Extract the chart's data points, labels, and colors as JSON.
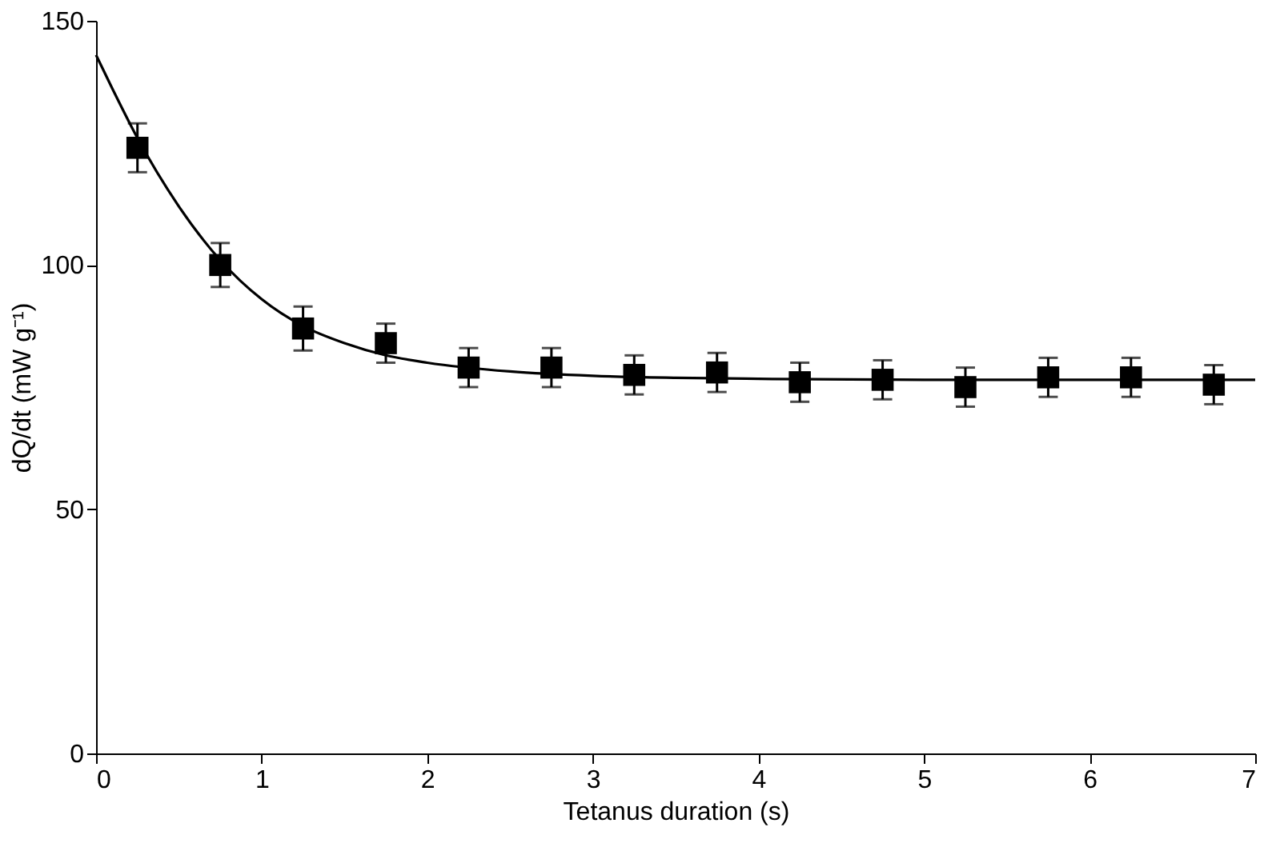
{
  "chart_data": {
    "type": "scatter",
    "xlabel": "Tetanus duration (s)",
    "ylabel": "dQ/dt (mW g⁻¹)",
    "xlim": [
      0,
      7
    ],
    "xticks": [
      0,
      1,
      2,
      3,
      4,
      5,
      6,
      7
    ],
    "ylim": [
      0,
      150
    ],
    "yticks": [
      0,
      50,
      100,
      150
    ],
    "grid": false,
    "marker": "square",
    "series": [
      {
        "color": "#000000",
        "x": [
          0.25,
          0.75,
          1.25,
          1.75,
          2.25,
          2.75,
          3.25,
          3.75,
          4.25,
          4.75,
          5.25,
          5.75,
          6.25,
          6.75
        ],
        "values": [
          124,
          100,
          87,
          84,
          79,
          79,
          77.5,
          78,
          76,
          76.5,
          75,
          77,
          77,
          75.5
        ],
        "errors": [
          5,
          4.5,
          4.5,
          4,
          4,
          4,
          4,
          4,
          4,
          4,
          4,
          4,
          4,
          4
        ]
      },
      {
        "type": "line",
        "color": "#000000",
        "line_style": "solid",
        "marker": "none",
        "x": [
          0,
          0.1,
          0.25,
          0.5,
          0.75,
          1,
          1.25,
          1.5,
          1.75,
          2,
          2.5,
          3,
          3.5,
          4,
          5,
          6,
          7
        ],
        "values": [
          143,
          136,
          126,
          112,
          101,
          93,
          87.5,
          84,
          81.5,
          80,
          78.2,
          77.3,
          76.9,
          76.7,
          76.5,
          76.5,
          76.5
        ]
      }
    ]
  }
}
